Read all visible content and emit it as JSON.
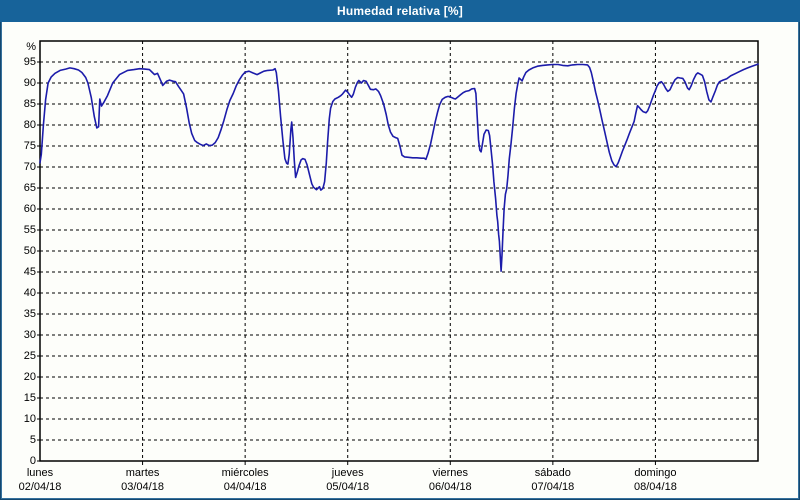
{
  "window": {
    "title": "Humedad relativa [%]"
  },
  "colors": {
    "title_bar": "#17639a",
    "title_text": "#ffffff",
    "frame": "#35719c",
    "panel_background": "#fdfefa",
    "line": "#1c1caa",
    "grid": "#000000",
    "axis_text": "#000000"
  },
  "chart_data": {
    "type": "line",
    "title": "Humedad relativa [%]",
    "ylabel": "%",
    "ylim": [
      0,
      100
    ],
    "ytick_step": 5,
    "ytick_labels": [
      "0",
      "5",
      "10",
      "15",
      "20",
      "25",
      "30",
      "35",
      "40",
      "45",
      "50",
      "55",
      "60",
      "65",
      "70",
      "75",
      "80",
      "85",
      "90",
      "95"
    ],
    "xlim_hours": [
      0,
      168
    ],
    "grid": "dashed",
    "legend": "none",
    "x_axis_days": [
      {
        "name": "lunes",
        "date": "02/04/18"
      },
      {
        "name": "martes",
        "date": "03/04/18"
      },
      {
        "name": "miércoles",
        "date": "04/04/18"
      },
      {
        "name": "jueves",
        "date": "05/04/18"
      },
      {
        "name": "viernes",
        "date": "06/04/18"
      },
      {
        "name": "sábado",
        "date": "07/04/18"
      },
      {
        "name": "domingo",
        "date": "08/04/18"
      }
    ],
    "series": [
      {
        "name": "Humedad relativa",
        "unit": "%",
        "points_hour_value": [
          [
            0,
            71
          ],
          [
            0.3,
            73
          ],
          [
            0.8,
            80
          ],
          [
            1.3,
            86
          ],
          [
            1.9,
            90
          ],
          [
            2.6,
            91.4
          ],
          [
            3.5,
            92.3
          ],
          [
            4.7,
            93
          ],
          [
            6,
            93.3
          ],
          [
            7,
            93.6
          ],
          [
            8,
            93.4
          ],
          [
            9,
            93.1
          ],
          [
            9.8,
            92.5
          ],
          [
            10.7,
            91.3
          ],
          [
            11.2,
            90
          ],
          [
            12,
            86.5
          ],
          [
            12.7,
            82
          ],
          [
            13.3,
            79.3
          ],
          [
            13.7,
            79.6
          ],
          [
            14,
            86.2
          ],
          [
            14.4,
            84.5
          ],
          [
            15,
            85.5
          ],
          [
            15.8,
            87
          ],
          [
            17,
            90
          ],
          [
            18.6,
            92
          ],
          [
            20.5,
            93
          ],
          [
            22,
            93.2
          ],
          [
            23.3,
            93.4
          ],
          [
            24.5,
            93.3
          ],
          [
            25.6,
            93.2
          ],
          [
            26.3,
            92.5
          ],
          [
            26.8,
            92
          ],
          [
            27.5,
            92.3
          ],
          [
            28.3,
            90.5
          ],
          [
            28.7,
            89.4
          ],
          [
            29.6,
            90.4
          ],
          [
            30.3,
            90.7
          ],
          [
            31.2,
            90.4
          ],
          [
            31.7,
            90.3
          ],
          [
            32.4,
            89.2
          ],
          [
            33,
            88.3
          ],
          [
            33.6,
            87.4
          ],
          [
            34.3,
            84
          ],
          [
            34.9,
            80.5
          ],
          [
            35.5,
            78
          ],
          [
            36.2,
            76.3
          ],
          [
            36.8,
            75.8
          ],
          [
            37.5,
            75.4
          ],
          [
            38.2,
            75.1
          ],
          [
            38.9,
            75.5
          ],
          [
            39.6,
            75.1
          ],
          [
            40.3,
            75.2
          ],
          [
            41,
            75.8
          ],
          [
            41.7,
            77
          ],
          [
            42.4,
            79
          ],
          [
            43,
            81
          ],
          [
            43.7,
            83.6
          ],
          [
            44.4,
            85.8
          ],
          [
            45.2,
            87.5
          ],
          [
            45.9,
            89.3
          ],
          [
            46.6,
            90.7
          ],
          [
            47.3,
            91.8
          ],
          [
            48,
            92.6
          ],
          [
            48.9,
            92.8
          ],
          [
            49.8,
            92.4
          ],
          [
            50.8,
            92
          ],
          [
            51.6,
            92.4
          ],
          [
            52.4,
            92.8
          ],
          [
            53.3,
            93
          ],
          [
            54.5,
            93.1
          ],
          [
            55,
            93.4
          ],
          [
            55.3,
            92.5
          ],
          [
            55.8,
            88
          ],
          [
            56.3,
            82
          ],
          [
            56.8,
            76.5
          ],
          [
            57.3,
            72
          ],
          [
            57.7,
            70.9
          ],
          [
            58,
            70.7
          ],
          [
            58.3,
            73
          ],
          [
            58.7,
            79
          ],
          [
            58.9,
            80.7
          ],
          [
            59.2,
            77
          ],
          [
            59.5,
            71.5
          ],
          [
            59.8,
            67.5
          ],
          [
            60.2,
            68.8
          ],
          [
            60.6,
            70.3
          ],
          [
            61.1,
            71.7
          ],
          [
            61.5,
            72
          ],
          [
            62,
            71.8
          ],
          [
            62.5,
            70.5
          ],
          [
            63.1,
            68
          ],
          [
            63.6,
            66
          ],
          [
            64,
            65.2
          ],
          [
            64.7,
            64.6
          ],
          [
            65.1,
            65
          ],
          [
            65.4,
            65.3
          ],
          [
            65.7,
            64.5
          ],
          [
            66.2,
            64.9
          ],
          [
            66.6,
            66.5
          ],
          [
            67,
            71
          ],
          [
            67.3,
            76
          ],
          [
            67.7,
            81.5
          ],
          [
            68,
            84
          ],
          [
            68.5,
            85.6
          ],
          [
            69,
            86.2
          ],
          [
            69.8,
            86.6
          ],
          [
            70.4,
            87
          ],
          [
            70.8,
            87.4
          ],
          [
            71.5,
            88.3
          ],
          [
            72,
            87.8
          ],
          [
            72.5,
            87.1
          ],
          [
            72.9,
            86.6
          ],
          [
            73.3,
            87.3
          ],
          [
            73.8,
            89
          ],
          [
            74.3,
            90.2
          ],
          [
            74.6,
            90.6
          ],
          [
            75.2,
            90
          ],
          [
            75.7,
            90.6
          ],
          [
            76.3,
            90.4
          ],
          [
            76.8,
            89.5
          ],
          [
            77.3,
            88.5
          ],
          [
            78,
            88.4
          ],
          [
            78.6,
            88.6
          ],
          [
            79.2,
            88
          ],
          [
            79.7,
            87
          ],
          [
            80.4,
            85
          ],
          [
            81,
            82.5
          ],
          [
            81.5,
            80
          ],
          [
            82,
            78.3
          ],
          [
            82.6,
            77.3
          ],
          [
            83.2,
            77
          ],
          [
            83.7,
            76.8
          ],
          [
            84.2,
            75
          ],
          [
            84.7,
            72.8
          ],
          [
            85.3,
            72.4
          ],
          [
            86.2,
            72.3
          ],
          [
            87.2,
            72.2
          ],
          [
            88.2,
            72.2
          ],
          [
            89.2,
            72.1
          ],
          [
            89.9,
            72.1
          ],
          [
            90.3,
            71.8
          ],
          [
            90.8,
            73.3
          ],
          [
            91.4,
            75.5
          ],
          [
            91.9,
            78
          ],
          [
            92.5,
            80.8
          ],
          [
            93,
            83
          ],
          [
            93.5,
            84.8
          ],
          [
            94.1,
            86.1
          ],
          [
            94.8,
            86.6
          ],
          [
            95.5,
            86.8
          ],
          [
            96.2,
            86.6
          ],
          [
            96.8,
            86.3
          ],
          [
            97.2,
            86.2
          ],
          [
            97.8,
            86.7
          ],
          [
            98.4,
            87.2
          ],
          [
            99,
            87.7
          ],
          [
            99.6,
            88
          ],
          [
            100.4,
            88.2
          ],
          [
            101,
            88.6
          ],
          [
            101.7,
            88.7
          ],
          [
            102,
            87.5
          ],
          [
            102.3,
            82
          ],
          [
            102.6,
            76.5
          ],
          [
            102.9,
            74
          ],
          [
            103.2,
            73.6
          ],
          [
            103.6,
            76
          ],
          [
            103.9,
            77.8
          ],
          [
            104.4,
            78.8
          ],
          [
            104.9,
            78.7
          ],
          [
            105.2,
            77.5
          ],
          [
            105.5,
            74.5
          ],
          [
            105.9,
            70.5
          ],
          [
            106.2,
            66.5
          ],
          [
            106.6,
            62.5
          ],
          [
            106.9,
            58.5
          ],
          [
            107.1,
            57
          ],
          [
            107.3,
            54
          ],
          [
            107.5,
            52.3
          ],
          [
            107.7,
            48.5
          ],
          [
            107.9,
            45.2
          ],
          [
            108.1,
            49
          ],
          [
            108.3,
            54
          ],
          [
            108.6,
            60
          ],
          [
            108.9,
            63.5
          ],
          [
            109.2,
            64.8
          ],
          [
            109.5,
            68
          ],
          [
            109.8,
            72
          ],
          [
            110.2,
            75.5
          ],
          [
            110.6,
            79.5
          ],
          [
            111,
            84
          ],
          [
            111.4,
            87.5
          ],
          [
            111.8,
            89.8
          ],
          [
            112.1,
            91.2
          ],
          [
            112.5,
            90.8
          ],
          [
            112.8,
            90.5
          ],
          [
            113.2,
            91.5
          ],
          [
            113.7,
            92.5
          ],
          [
            114.4,
            93.1
          ],
          [
            115.3,
            93.6
          ],
          [
            116.4,
            94
          ],
          [
            117.6,
            94.2
          ],
          [
            118.8,
            94.3
          ],
          [
            120,
            94.4
          ],
          [
            121.2,
            94.4
          ],
          [
            122.3,
            94.2
          ],
          [
            123.5,
            94.1
          ],
          [
            124.6,
            94.3
          ],
          [
            125.8,
            94.4
          ],
          [
            127,
            94.4
          ],
          [
            128.1,
            94.3
          ],
          [
            128.6,
            93.7
          ],
          [
            129,
            92.5
          ],
          [
            129.5,
            90.2
          ],
          [
            130,
            87.8
          ],
          [
            130.5,
            85.8
          ],
          [
            131,
            83.5
          ],
          [
            131.5,
            81.2
          ],
          [
            132.1,
            78.5
          ],
          [
            132.7,
            75.8
          ],
          [
            133.2,
            73.5
          ],
          [
            133.8,
            71.5
          ],
          [
            134.3,
            70.5
          ],
          [
            134.8,
            70.1
          ],
          [
            135.3,
            71
          ],
          [
            135.8,
            72.4
          ],
          [
            136.3,
            73.8
          ],
          [
            136.8,
            75.1
          ],
          [
            137.4,
            76.6
          ],
          [
            137.9,
            78
          ],
          [
            138.5,
            79.5
          ],
          [
            139,
            80.8
          ],
          [
            139.4,
            82.8
          ],
          [
            139.8,
            84.6
          ],
          [
            140.2,
            84.2
          ],
          [
            140.6,
            83.7
          ],
          [
            141.1,
            83.2
          ],
          [
            141.8,
            82.9
          ],
          [
            142.2,
            83.4
          ],
          [
            142.6,
            84.4
          ],
          [
            143,
            85.6
          ],
          [
            143.5,
            87
          ],
          [
            144,
            88.2
          ],
          [
            144.4,
            89.3
          ],
          [
            144.9,
            90.1
          ],
          [
            145.4,
            90.3
          ],
          [
            145.9,
            89.7
          ],
          [
            146.4,
            88.7
          ],
          [
            146.9,
            88
          ],
          [
            147.4,
            88.4
          ],
          [
            148,
            89.7
          ],
          [
            148.6,
            90.8
          ],
          [
            149.2,
            91.3
          ],
          [
            149.8,
            91.2
          ],
          [
            150.4,
            91.1
          ],
          [
            150.9,
            90.3
          ],
          [
            151.5,
            88.8
          ],
          [
            151.9,
            88.4
          ],
          [
            152.4,
            89.4
          ],
          [
            152.9,
            90.8
          ],
          [
            153.5,
            92
          ],
          [
            153.9,
            92.4
          ],
          [
            154.5,
            92.1
          ],
          [
            155,
            91.8
          ],
          [
            155.5,
            90.3
          ],
          [
            156,
            88
          ],
          [
            156.5,
            86
          ],
          [
            157,
            85.5
          ],
          [
            157.5,
            86.8
          ],
          [
            158,
            88.1
          ],
          [
            158.5,
            89.5
          ],
          [
            159,
            90.3
          ],
          [
            159.8,
            90.7
          ],
          [
            160.7,
            91
          ],
          [
            161.6,
            91.7
          ],
          [
            162.6,
            92.2
          ],
          [
            163.6,
            92.7
          ],
          [
            164.6,
            93.2
          ],
          [
            165.6,
            93.6
          ],
          [
            166.6,
            94
          ],
          [
            167.5,
            94.3
          ],
          [
            168,
            94.5
          ]
        ]
      }
    ]
  }
}
